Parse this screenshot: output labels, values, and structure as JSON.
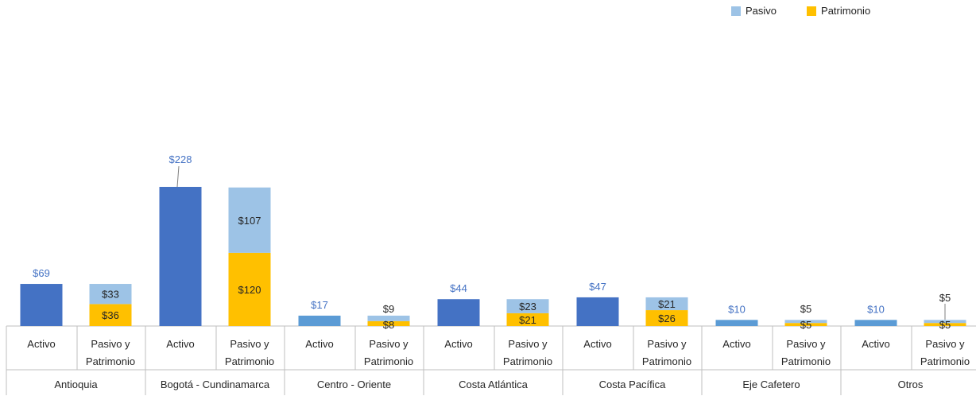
{
  "legend": {
    "pasivo_label": "Pasivo",
    "patrimonio_label": "Patrimonio"
  },
  "colors": {
    "activo": "#4472C4",
    "activo_small": "#5B9BD5",
    "pasivo": "#9DC3E6",
    "patrimonio": "#FFC000",
    "activo_label": "#4472C4",
    "axis": "#BFBFBF"
  },
  "chart_data": {
    "type": "bar",
    "stacked": true,
    "ylim": [
      0,
      240
    ],
    "grid": false,
    "legend_position": "top-right",
    "regions": [
      {
        "name": "Antioquia",
        "activo": 69,
        "pasivo": 33,
        "patrimonio": 36,
        "labels": {
          "activo": "$69",
          "pasivo": "$33",
          "patrimonio": "$36"
        }
      },
      {
        "name": "Bogotá - Cundinamarca",
        "activo": 228,
        "pasivo": 107,
        "patrimonio": 120,
        "labels": {
          "activo": "$228",
          "pasivo": "$107",
          "patrimonio": "$120"
        }
      },
      {
        "name": "Centro - Oriente",
        "activo": 17,
        "pasivo": 9,
        "patrimonio": 8,
        "labels": {
          "activo": "$17",
          "pasivo": "$9",
          "patrimonio": "$8"
        }
      },
      {
        "name": "Costa Atlántica",
        "activo": 44,
        "pasivo": 23,
        "patrimonio": 21,
        "labels": {
          "activo": "$44",
          "pasivo": "$23",
          "patrimonio": "$21"
        }
      },
      {
        "name": "Costa Pacífica",
        "activo": 47,
        "pasivo": 21,
        "patrimonio": 26,
        "labels": {
          "activo": "$47",
          "pasivo": "$21",
          "patrimonio": "$26"
        }
      },
      {
        "name": "Eje Cafetero",
        "activo": 10,
        "pasivo": 5,
        "patrimonio": 5,
        "labels": {
          "activo": "$10",
          "pasivo": "$5",
          "patrimonio": "$5"
        }
      },
      {
        "name": "Otros",
        "activo": 10,
        "pasivo": 5,
        "patrimonio": 5,
        "labels": {
          "activo": "$10",
          "pasivo": "$5",
          "patrimonio": "$5"
        }
      }
    ],
    "bar_labels": {
      "activo": "Activo",
      "pasivo_line1": "Pasivo y",
      "pasivo_line2": "Patrimonio"
    }
  }
}
